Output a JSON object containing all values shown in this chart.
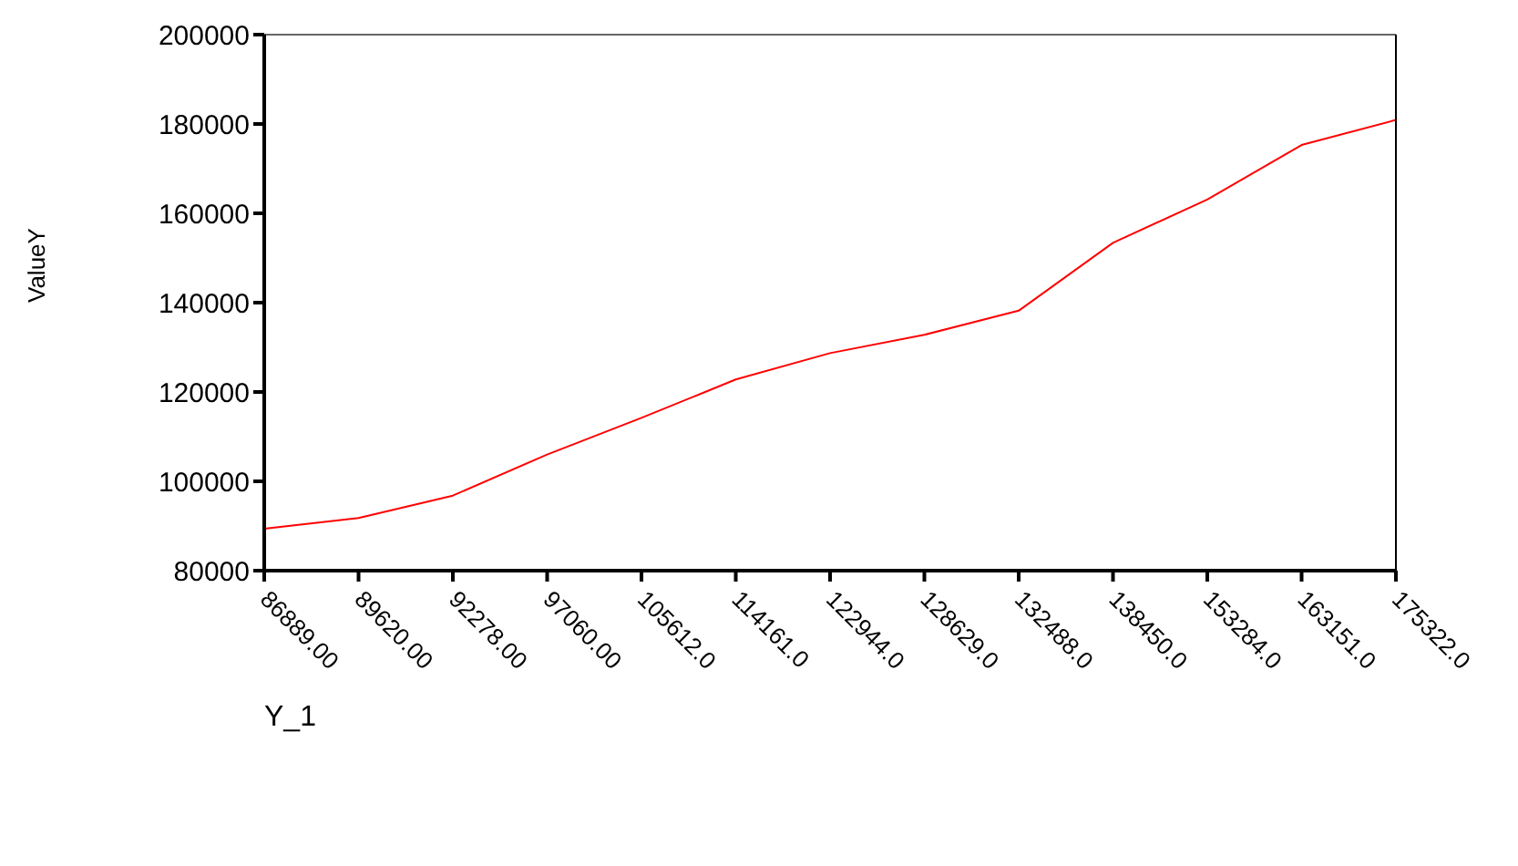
{
  "chart_data": {
    "type": "line",
    "xlabel": "Y_1",
    "ylabel": "ValueY",
    "categories": [
      "86889.00",
      "89620.00",
      "92278.00",
      "97060.00",
      "105612.0",
      "114161.0",
      "122944.0",
      "128629.0",
      "132488.0",
      "138450.0",
      "153284.0",
      "163151.0",
      "175322.0"
    ],
    "series": [
      {
        "color": "#ff0000",
        "values": [
          89400,
          91800,
          96800,
          106000,
          114200,
          122800,
          128700,
          132800,
          138200,
          153400,
          163100,
          175300,
          180900
        ]
      }
    ],
    "ylim": [
      80000,
      200000
    ],
    "yticks": [
      80000,
      100000,
      120000,
      140000,
      160000,
      180000,
      200000
    ],
    "grid": false,
    "legend": false,
    "marker": "none",
    "line_style": "solid"
  }
}
